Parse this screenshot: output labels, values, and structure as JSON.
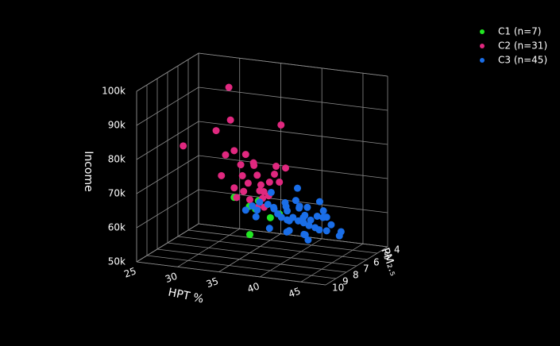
{
  "chart_data": {
    "type": "scatter3d",
    "xlabel": "HPT %",
    "ylabel": "PM₂.₅",
    "zlabel": "Income",
    "xlim": [
      25,
      48
    ],
    "ylim": [
      4,
      10
    ],
    "zlim": [
      50000,
      100000
    ],
    "xticks": [
      25,
      30,
      35,
      40,
      45
    ],
    "yticks": [
      4,
      5,
      6,
      7,
      8,
      9,
      10
    ],
    "zticks": [
      {
        "value": 50000,
        "label": "50k"
      },
      {
        "value": 60000,
        "label": "60k"
      },
      {
        "value": 70000,
        "label": "70k"
      },
      {
        "value": 80000,
        "label": "80k"
      },
      {
        "value": 90000,
        "label": "90k"
      },
      {
        "value": 100000,
        "label": "100k"
      }
    ],
    "grid": true,
    "legend": "top-right",
    "series": [
      {
        "name": "C1 (n=7)",
        "color": "#22e622",
        "x": [
          33.1,
          36.3,
          34.7,
          35.7,
          39.1,
          37.0,
          35.0
        ],
        "y": [
          7,
          7.2,
          6.8,
          7,
          7.4,
          6.6,
          7
        ],
        "z": [
          65700,
          66000,
          63170,
          63000,
          63350,
          60140,
          55350
        ]
      },
      {
        "name": "C2 (n=31)",
        "color": "#e0287f",
        "x": [
          32.2,
          32.9,
          38.8,
          30.4,
          33.6,
          34.5,
          31.8,
          35.7,
          33.9,
          35.0,
          36.4,
          38.0,
          39.1,
          31.8,
          37.4,
          33.6,
          35.3,
          38.6,
          36.1,
          34.5,
          36.7,
          35.7,
          37.8,
          35.0,
          36.3,
          37.0,
          35.9,
          32.6,
          33.9,
          38.2,
          26.9
        ],
        "y": [
          6.8,
          7.2,
          7,
          6.6,
          7.4,
          7,
          6.8,
          7.2,
          7,
          6.6,
          7.4,
          7,
          6.8,
          7.2,
          7,
          6.6,
          7.4,
          7,
          6.8,
          7.2,
          7,
          6.6,
          7.4,
          7,
          6.8,
          7.2,
          7,
          6.6,
          7.4,
          7,
          7
        ],
        "z": [
          97310,
          88680,
          88590,
          83730,
          80280,
          78700,
          77400,
          76960,
          75490,
          74890,
          73910,
          73930,
          75680,
          72050,
          71420,
          71450,
          71260,
          71790,
          69860,
          68240,
          68420,
          67650,
          68280,
          65580,
          65980,
          64330,
          63540,
          67600,
          66650,
          76310,
          78960
        ]
      },
      {
        "name": "C3 (n=45)",
        "color": "#1a6ee8",
        "x": [
          37.6,
          40.3,
          41.1,
          39.3,
          38.2,
          40.8,
          42.0,
          43.0,
          43.7,
          41.7,
          40.5,
          39.3,
          38.4,
          37.4,
          36.4,
          35.3,
          36.0,
          41.3,
          42.2,
          43.4,
          40.3,
          39.5,
          42.0,
          43.2,
          44.9,
          45.6,
          42.6,
          41.6,
          44.6,
          43.7,
          42.4,
          38.9,
          36.7,
          37.2,
          39.8,
          38.6,
          40.9,
          39.3,
          37.9,
          41.5,
          43.2,
          44.1,
          45.9,
          40.5,
          35.0
        ],
        "y": [
          7,
          6.6,
          7.4,
          7,
          7.2,
          6.8,
          7,
          6.6,
          7.4,
          7,
          7.2,
          6.8,
          7,
          6.6,
          7.4,
          7,
          7.2,
          6.8,
          7,
          6.6,
          7.4,
          7,
          7.2,
          6.8,
          7,
          6.6,
          7.4,
          7,
          7.2,
          6.8,
          7,
          6.6,
          7.4,
          7,
          7.2,
          6.8,
          7,
          6.6,
          7.4,
          7,
          7.2,
          6.8,
          7,
          6.6,
          7.4
        ],
        "z": [
          68470,
          69750,
          67890,
          65960,
          64210,
          65000,
          65380,
          66610,
          64030,
          62960,
          62370,
          63170,
          62420,
          63280,
          63680,
          63820,
          61230,
          60280,
          60100,
          62070,
          58820,
          57420,
          57700,
          58770,
          61140,
          58560,
          56720,
          57350,
          59650,
          64490,
          61770,
          63980,
          66100,
          64860,
          61440,
          61100,
          61090,
          59910,
          58790,
          62210,
          60160,
          62750,
          58190,
          64000,
          63260
        ]
      }
    ]
  }
}
